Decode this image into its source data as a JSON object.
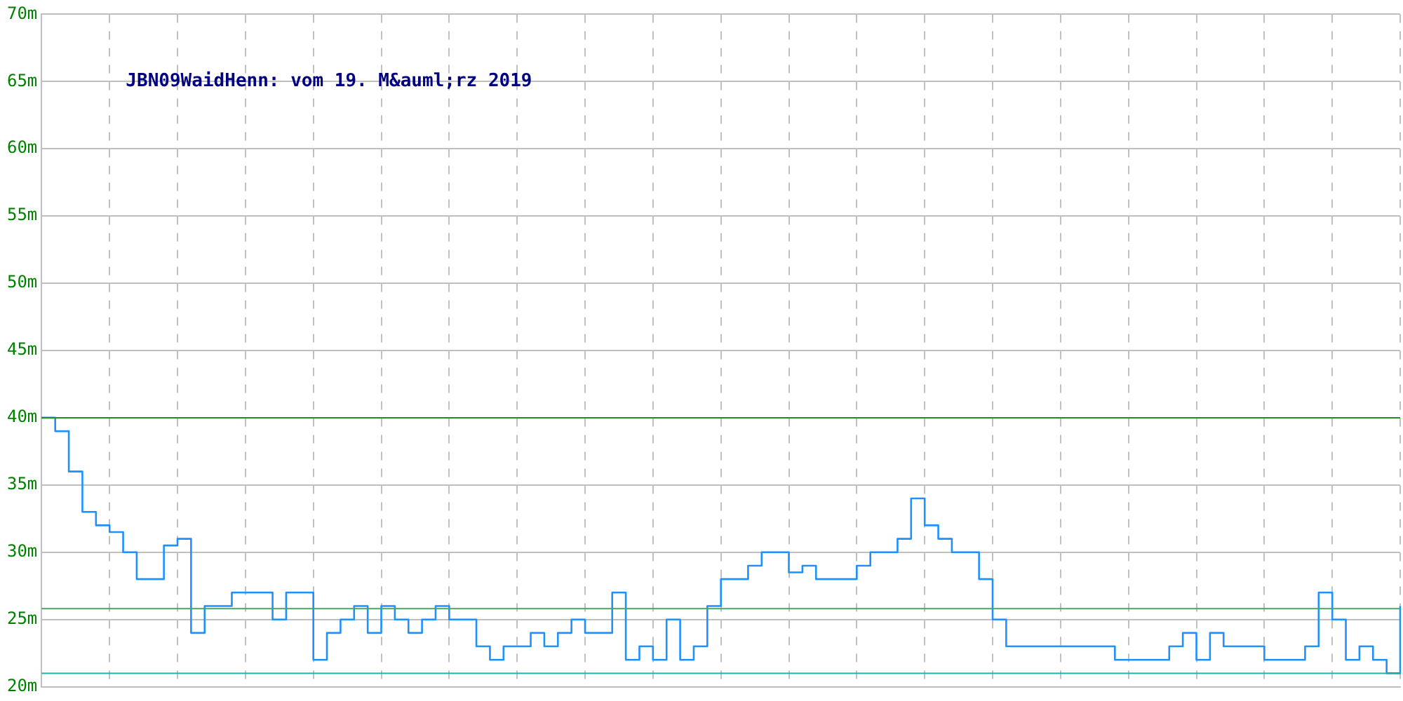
{
  "chart_data": {
    "type": "step",
    "title": "JBN09WaidHenn: vom 19. M&auml;rz 2019",
    "categories": [
      null,
      null,
      null,
      null,
      null,
      null,
      null,
      null,
      null,
      null,
      null,
      null,
      null,
      null,
      null,
      null,
      null,
      null,
      null,
      null,
      null,
      null,
      null,
      null,
      null,
      null,
      null,
      null,
      null,
      null,
      null,
      null,
      null,
      null,
      null,
      null,
      null,
      null,
      null,
      null,
      null,
      null,
      null,
      null,
      null,
      null,
      null,
      null,
      null,
      null,
      null,
      null,
      null,
      null,
      null,
      null,
      null,
      null,
      null,
      null,
      null,
      null,
      null,
      null,
      null,
      null,
      null,
      null,
      null,
      null,
      null,
      null,
      null,
      null,
      null,
      null,
      null,
      null,
      null,
      null,
      null,
      null,
      null,
      null,
      null,
      null,
      null,
      null,
      null,
      null,
      null,
      null,
      null,
      null,
      null,
      null,
      null,
      null,
      null,
      null,
      null
    ],
    "series": [
      {
        "color": "#1e90ff",
        "values": [
          40,
          39,
          36,
          33,
          32,
          31.5,
          30,
          28,
          28,
          30.5,
          31,
          24,
          26,
          26,
          27,
          27,
          27,
          25,
          27,
          27,
          22,
          24,
          25,
          26,
          24,
          26,
          25,
          24,
          25,
          26,
          25,
          25,
          23,
          22,
          23,
          23,
          24,
          23,
          24,
          25,
          24,
          24,
          27,
          22,
          23,
          22,
          25,
          22,
          23,
          26,
          28,
          28,
          29,
          30,
          30,
          28.5,
          29,
          28,
          28,
          28,
          29,
          30,
          30,
          31,
          34,
          32,
          31,
          30,
          30,
          28,
          25,
          23,
          23,
          23,
          23,
          23,
          23,
          23,
          23,
          22,
          22,
          22,
          22,
          23,
          24,
          22,
          24,
          23,
          23,
          23,
          22,
          22,
          22,
          23,
          27,
          25,
          22,
          23,
          22,
          21,
          26
        ]
      }
    ],
    "ylim": [
      20,
      70
    ],
    "yticks": [
      {
        "value": 20,
        "label": "20m"
      },
      {
        "value": 25,
        "label": "25m"
      },
      {
        "value": 30,
        "label": "30m"
      },
      {
        "value": 35,
        "label": "35m"
      },
      {
        "value": 40,
        "label": "40m"
      },
      {
        "value": 45,
        "label": "45m"
      },
      {
        "value": 50,
        "label": "50m"
      },
      {
        "value": 55,
        "label": "55m"
      },
      {
        "value": 60,
        "label": "60m"
      },
      {
        "value": 65,
        "label": "65m"
      },
      {
        "value": 70,
        "label": "70m"
      }
    ],
    "tick_labels": "y",
    "grid": true,
    "ref_lines": [
      {
        "axis": "y",
        "value": 40,
        "color": "#228b22"
      },
      {
        "axis": "y",
        "value": 25.8,
        "color": "#4ca36a"
      },
      {
        "axis": "y",
        "value": 21,
        "color": "#20b2aa"
      }
    ]
  }
}
